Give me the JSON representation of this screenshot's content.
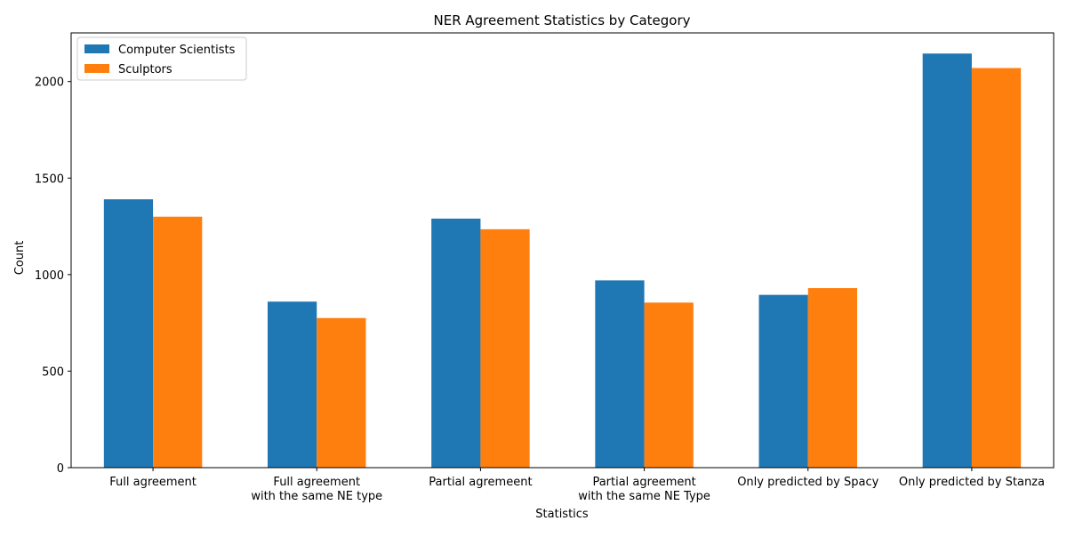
{
  "chart_data": {
    "type": "bar",
    "title": "NER Agreement Statistics by Category",
    "xlabel": "Statistics",
    "ylabel": "Count",
    "categories": [
      [
        "Full agreement"
      ],
      [
        "Full agreement",
        "with the same NE type"
      ],
      [
        "Partial agremeent"
      ],
      [
        "Partial agreement",
        "with the same NE Type"
      ],
      [
        "Only predicted by Spacy"
      ],
      [
        "Only predicted by Stanza"
      ]
    ],
    "series": [
      {
        "name": "Computer Scientists",
        "color": "#1f77b4",
        "values": [
          1390,
          860,
          1290,
          970,
          895,
          2145
        ]
      },
      {
        "name": "Sculptors",
        "color": "#ff7f0e",
        "values": [
          1300,
          775,
          1235,
          855,
          930,
          2070
        ]
      }
    ],
    "ylim": [
      0,
      2252
    ],
    "yticks": [
      0,
      500,
      1000,
      1500,
      2000
    ],
    "legend": "upper-left",
    "grid": false
  }
}
